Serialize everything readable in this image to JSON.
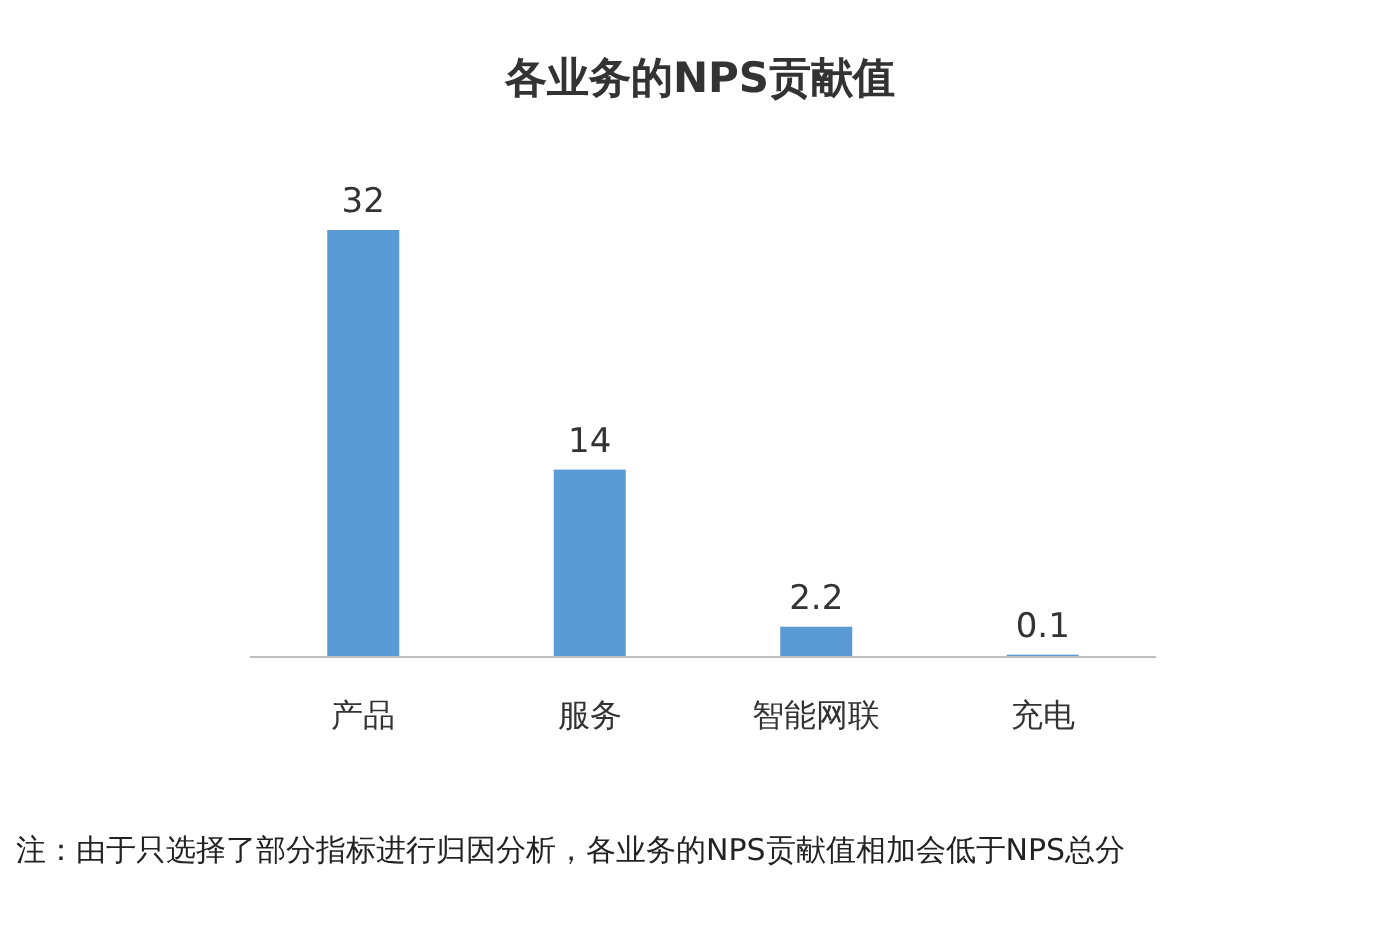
{
  "chart_data": {
    "type": "bar",
    "title": "各业务的NPS贡献值",
    "categories": [
      "产品",
      "服务",
      "智能网联",
      "充电"
    ],
    "values": [
      32,
      14,
      2.2,
      0.1
    ],
    "color": "#5b9bd5",
    "data_labels": true,
    "annotations": [
      "注：由于只选择了部分指标进行归因分析，各业务的NPS贡献值相加会低于NPS总分"
    ]
  }
}
